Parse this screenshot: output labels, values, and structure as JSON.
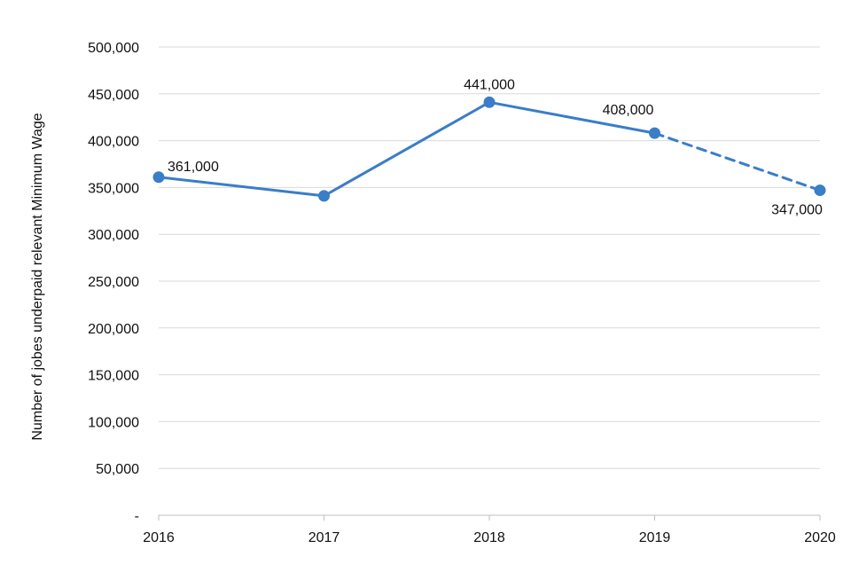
{
  "chart_data": {
    "type": "line",
    "title": "",
    "xlabel": "",
    "ylabel": "Number of jobes underpaid relevant Minimum Wage",
    "categories": [
      "2016",
      "2017",
      "2018",
      "2019",
      "2020"
    ],
    "series": [
      {
        "values": [
          361000,
          341000,
          441000,
          408000,
          347000
        ],
        "line_styles": [
          "solid",
          "solid",
          "solid",
          "dashed"
        ],
        "data_labels": [
          "361,000",
          "",
          "441,000",
          "408,000",
          "347,000"
        ]
      }
    ],
    "ylim": [
      0,
      500000
    ],
    "yticks": [
      0,
      50000,
      100000,
      150000,
      200000,
      250000,
      300000,
      350000,
      400000,
      450000,
      500000
    ],
    "ytick_labels": [
      "-",
      "50,000",
      "100,000",
      "150,000",
      "200,000",
      "250,000",
      "300,000",
      "350,000",
      "400,000",
      "450,000",
      "500,000"
    ],
    "grid": true,
    "legend": "none",
    "colors": {
      "line": "#3a7dc9",
      "marker": "#3a7dc9",
      "grid": "#d9d9d9",
      "axis": "#bfbfbf",
      "text": "#111111"
    }
  }
}
